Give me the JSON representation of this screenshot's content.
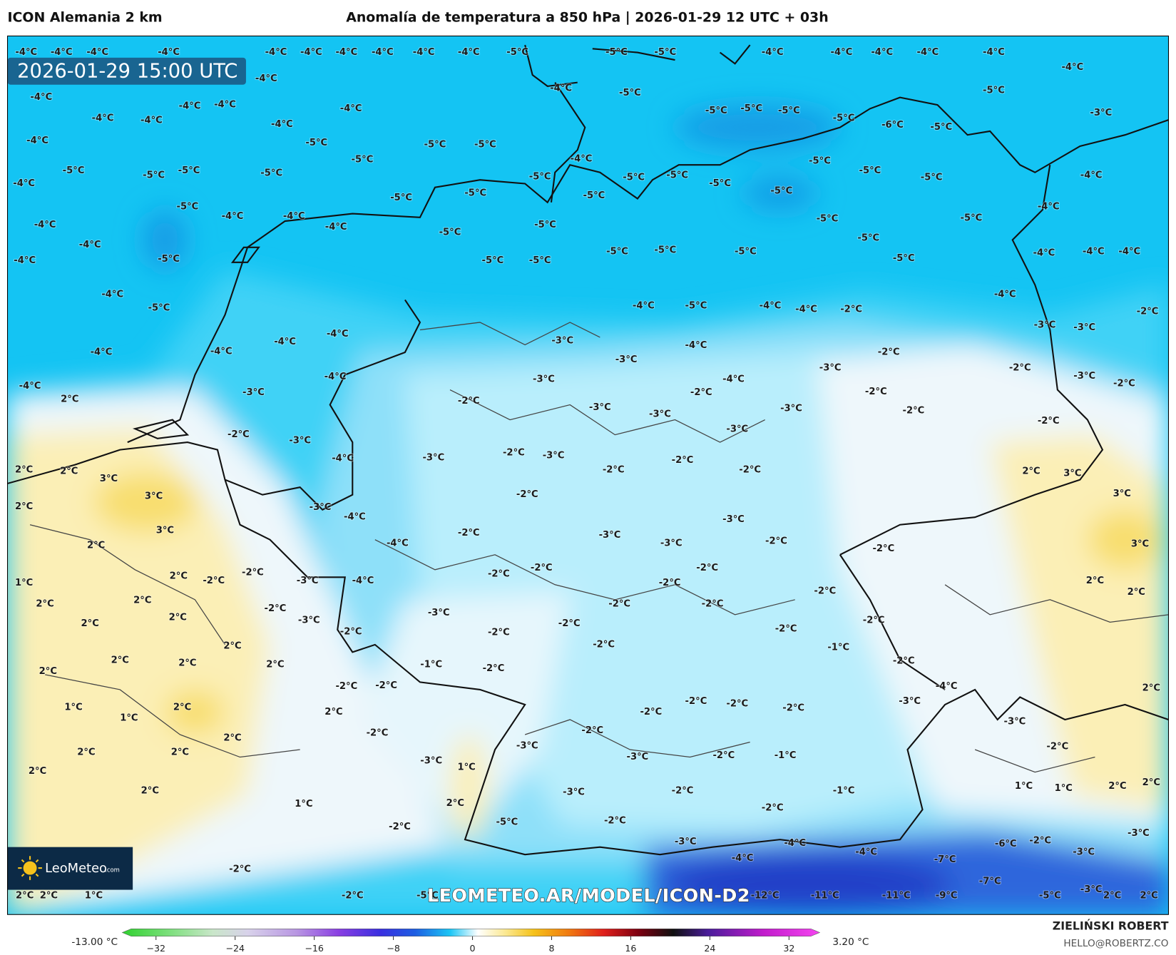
{
  "header": {
    "left": "ICON Alemania 2 km",
    "title": "Anomalía de temperatura a 850 hPa | 2026-01-29 12 UTC + 03h"
  },
  "map": {
    "valid_time": "2026-01-29 15:00 UTC",
    "watermark": "LEOMETEO.AR/MODEL/ICON-D2",
    "logo": {
      "name": "LeoMeteo",
      "suffix": ".com"
    },
    "labels": [
      "-4°C",
      "-4°C",
      "-4°C",
      "-4°C",
      "-4°C",
      "-4°C",
      "-4°C",
      "-4°C",
      "-4°C",
      "-4°C",
      "-5°C",
      "-5°C",
      "-5°C",
      "-4°C",
      "-4°C",
      "-4°C",
      "-4°C",
      "-4°C",
      "-4°C",
      "-4°C",
      "-4°C",
      "-5°C",
      "-5°C",
      "-4°C",
      "-4°C",
      "-4°C",
      "-4°C",
      "-5°C",
      "-5°C",
      "-5°C",
      "-5°C",
      "-6°C",
      "-5°C",
      "-3°C",
      "-4°C",
      "-4°C",
      "-4°C",
      "-4°C",
      "-5°C",
      "-5°C",
      "-5°C",
      "-5°C",
      "-4°C",
      "-5°C",
      "-5°C",
      "-5°C",
      "-5°C",
      "-5°C",
      "-5°C",
      "-5°C",
      "-5°C",
      "-5°C",
      "-5°C",
      "-4°C",
      "-4°C",
      "-5°C",
      "-5°C",
      "-5°C",
      "-5°C",
      "-5°C",
      "-5°C",
      "-4°C",
      "-4°C",
      "-4°C",
      "-5°C",
      "-5°C",
      "-4°C",
      "-4°C",
      "-5°C",
      "-5°C",
      "-5°C",
      "-4°C",
      "-5°C",
      "-5°C",
      "-5°C",
      "-5°C",
      "-5°C",
      "-5°C",
      "-5°C",
      "-4°C",
      "-4°C",
      "-4°C",
      "-4°C",
      "-4°C",
      "-5°C",
      "-4°C",
      "-5°C",
      "-4°C",
      "-4°C",
      "-2°C",
      "-4°C",
      "-2°C",
      "-4°C",
      "-4°C",
      "-3°C",
      "-4°C",
      "-2°C",
      "-3°C",
      "-3°C",
      "-4°C",
      "-4°C",
      "-3°C",
      "-3°C",
      "-2°C",
      "-4°C",
      "-3°C",
      "-4°C",
      "-3°C",
      "-2°C",
      "-4°C",
      "-3°C",
      "-2°C",
      "-2°C",
      "2°C",
      "-2°C",
      "-3°C",
      "-3°C",
      "-3°C",
      "-2°C",
      "-3°C",
      "-2°C",
      "-2°C",
      "-3°C",
      "-3°C",
      "-2°C",
      "-3°C",
      "-4°C",
      "-2°C",
      "2°C",
      "2°C",
      "3°C",
      "-2°C",
      "-2°C",
      "2°C",
      "3°C",
      "3°C",
      "-2°C",
      "3°C",
      "2°C",
      "-3°C",
      "-4°C",
      "-3°C",
      "3°C",
      "-2°C",
      "-3°C",
      "-3°C",
      "-2°C",
      "-2°C",
      "2°C",
      "-4°C",
      "3°C",
      "-2°C",
      "-2°C",
      "-2°C",
      "-2°C",
      "2°C",
      "-2°C",
      "-3°C",
      "-4°C",
      "-2°C",
      "2°C",
      "1°C",
      "2°C",
      "2°C",
      "-2°C",
      "-3°C",
      "-2°C",
      "-2°C",
      "-2°C",
      "2°C",
      "2°C",
      "-3°C",
      "-2°C",
      "-2°C",
      "2°C",
      "-2°C",
      "-2°C",
      "-2°C",
      "2°C",
      "-2°C",
      "-1°C",
      "2°C",
      "2°C",
      "-1°C",
      "-2°C",
      "-2°C",
      "2°C",
      "2°C",
      "-4°C",
      "2°C",
      "-2°C",
      "-2°C",
      "1°C",
      "2°C",
      "2°C",
      "-2°C",
      "-2°C",
      "-2°C",
      "-2°C",
      "-3°C",
      "1°C",
      "-2°C",
      "-2°C",
      "2°C",
      "-3°C",
      "-3°C",
      "-2°C",
      "2°C",
      "2°C",
      "-3°C",
      "-2°C",
      "-1°C",
      "-3°C",
      "2°C",
      "1°C",
      "1°C",
      "1°C",
      "2°C",
      "2°C",
      "2°C",
      "-3°C",
      "-2°C",
      "-1°C",
      "1°C",
      "2°C",
      "-2°C",
      "-5°C",
      "-2°C",
      "-2°C",
      "-3°C",
      "-3°C",
      "-4°C",
      "-6°C",
      "-2°C",
      "-3°C",
      "-4°C",
      "-4°C",
      "-7°C",
      "-2°C",
      "-7°C",
      "-3°C",
      "2°C",
      "2°C",
      "1°C",
      "-2°C",
      "-5°C",
      "-12°C",
      "-11°C",
      "-11°C",
      "-9°C",
      "-5°C",
      "2°C",
      "2°C"
    ]
  },
  "colorbar": {
    "min_label": "-13.00 °C",
    "max_label": "3.20 °C",
    "ticks": [
      {
        "value": -32,
        "label": "−32"
      },
      {
        "value": -24,
        "label": "−24"
      },
      {
        "value": -16,
        "label": "−16"
      },
      {
        "value": -8,
        "label": "−8"
      },
      0,
      8,
      16,
      24,
      32
    ]
  },
  "footer": {
    "author": "ZIELIŃSKI ROBERT",
    "contact": "HELLO@ROBERTZ.CO"
  }
}
